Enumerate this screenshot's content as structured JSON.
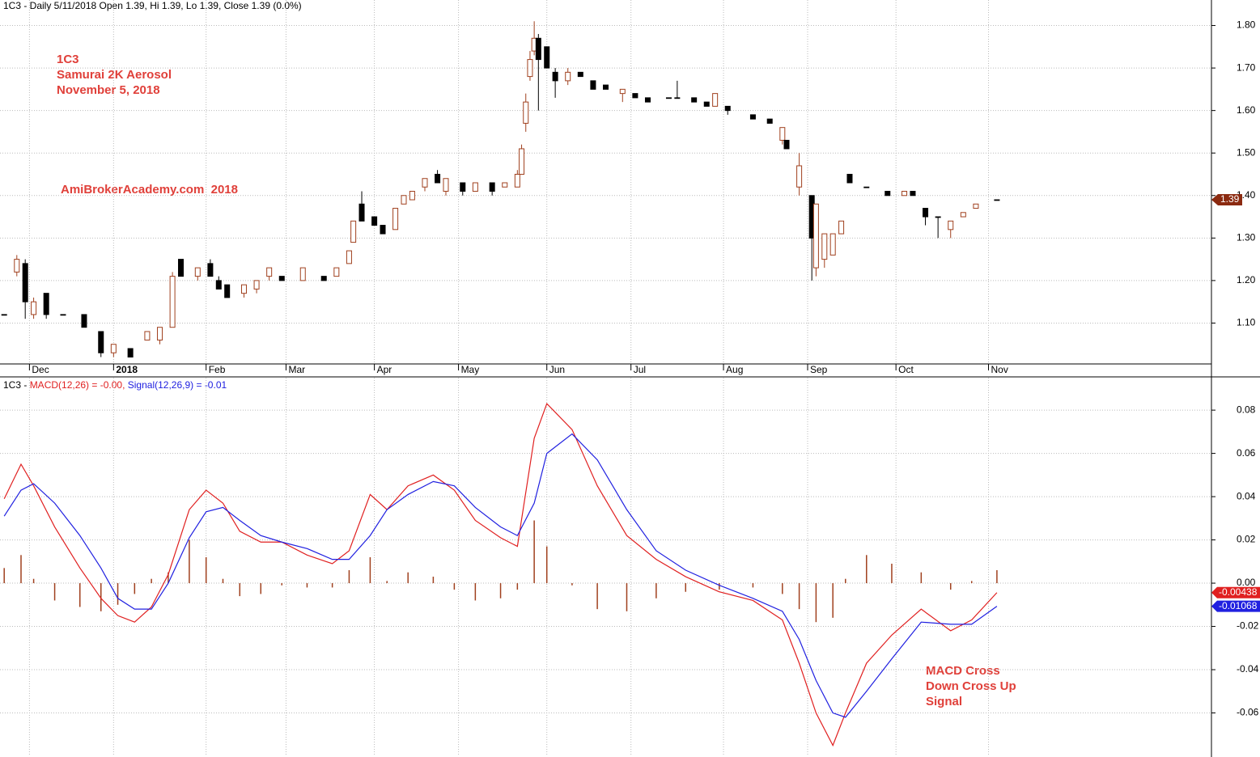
{
  "chart_data": [
    {
      "type": "candlestick",
      "title": "1C3 - Daily 5/11/2018 Open 1.39, Hi 1.39, Lo 1.39, Close 1.39 (0.0%)",
      "annotations": [
        "1C3",
        "Samurai 2K Aerosol",
        "November 5, 2018",
        "AmiBrokerAcademy.com  2018"
      ],
      "x": [
        0,
        3,
        5,
        7,
        10,
        14,
        19,
        23,
        26,
        30,
        34,
        37,
        40,
        42,
        46,
        49,
        51,
        53,
        57,
        60,
        63,
        66,
        71,
        76,
        79,
        82,
        83,
        85,
        88,
        90,
        93,
        95,
        97,
        100,
        103,
        105,
        109,
        112,
        116,
        119,
        122,
        123,
        124,
        125,
        126,
        127,
        129,
        131,
        134,
        137,
        140,
        143,
        147,
        150,
        153,
        158,
        160,
        164,
        167,
        169,
        172,
        178,
        182,
        185,
        186,
        189,
        192,
        193,
        195,
        197,
        199,
        201,
        205,
        210,
        214,
        216,
        219,
        222,
        225,
        228,
        231,
        236
      ],
      "open": [
        1.12,
        1.22,
        1.24,
        1.12,
        1.17,
        1.12,
        1.12,
        1.08,
        1.03,
        1.04,
        1.06,
        1.06,
        1.09,
        1.25,
        1.21,
        1.24,
        1.2,
        1.19,
        1.17,
        1.18,
        1.21,
        1.21,
        1.2,
        1.21,
        1.21,
        1.24,
        1.29,
        1.38,
        1.35,
        1.33,
        1.32,
        1.38,
        1.39,
        1.42,
        1.45,
        1.41,
        1.43,
        1.41,
        1.43,
        1.42,
        1.42,
        1.45,
        1.57,
        1.68,
        1.74,
        1.77,
        1.75,
        1.69,
        1.67,
        1.69,
        1.67,
        1.66,
        1.64,
        1.64,
        1.63,
        1.63,
        1.63,
        1.63,
        1.62,
        1.61,
        1.61,
        1.59,
        1.58,
        1.53,
        1.53,
        1.42,
        1.4,
        1.23,
        1.25,
        1.26,
        1.31,
        1.45,
        1.42,
        1.41,
        1.4,
        1.41,
        1.37,
        1.35,
        1.32,
        1.35,
        1.37,
        1.39
      ],
      "high": [
        1.12,
        1.26,
        1.25,
        1.16,
        1.17,
        1.12,
        1.12,
        1.08,
        1.05,
        1.04,
        1.08,
        1.09,
        1.22,
        1.25,
        1.23,
        1.25,
        1.21,
        1.19,
        1.19,
        1.2,
        1.23,
        1.21,
        1.23,
        1.21,
        1.23,
        1.27,
        1.34,
        1.41,
        1.35,
        1.33,
        1.37,
        1.4,
        1.41,
        1.44,
        1.46,
        1.44,
        1.43,
        1.43,
        1.43,
        1.43,
        1.46,
        1.52,
        1.64,
        1.74,
        1.81,
        1.78,
        1.75,
        1.7,
        1.7,
        1.69,
        1.67,
        1.66,
        1.65,
        1.64,
        1.63,
        1.63,
        1.67,
        1.63,
        1.62,
        1.64,
        1.61,
        1.59,
        1.58,
        1.56,
        1.53,
        1.5,
        1.4,
        1.38,
        1.31,
        1.31,
        1.34,
        1.45,
        1.42,
        1.41,
        1.41,
        1.41,
        1.37,
        1.35,
        1.34,
        1.36,
        1.38,
        1.39
      ],
      "low": [
        1.12,
        1.21,
        1.11,
        1.11,
        1.11,
        1.12,
        1.09,
        1.02,
        1.02,
        1.02,
        1.06,
        1.05,
        1.09,
        1.21,
        1.2,
        1.21,
        1.18,
        1.16,
        1.16,
        1.17,
        1.2,
        1.2,
        1.2,
        1.2,
        1.21,
        1.24,
        1.29,
        1.34,
        1.33,
        1.31,
        1.32,
        1.38,
        1.39,
        1.41,
        1.43,
        1.4,
        1.4,
        1.41,
        1.4,
        1.42,
        1.42,
        1.45,
        1.55,
        1.67,
        1.73,
        1.6,
        1.7,
        1.63,
        1.66,
        1.68,
        1.65,
        1.65,
        1.62,
        1.63,
        1.62,
        1.63,
        1.63,
        1.62,
        1.61,
        1.61,
        1.59,
        1.58,
        1.57,
        1.52,
        1.51,
        1.4,
        1.2,
        1.21,
        1.23,
        1.26,
        1.31,
        1.43,
        1.42,
        1.4,
        1.4,
        1.4,
        1.33,
        1.3,
        1.3,
        1.35,
        1.37,
        1.39
      ],
      "close": [
        1.12,
        1.25,
        1.15,
        1.15,
        1.12,
        1.12,
        1.09,
        1.03,
        1.05,
        1.02,
        1.08,
        1.09,
        1.21,
        1.21,
        1.23,
        1.21,
        1.18,
        1.16,
        1.19,
        1.2,
        1.23,
        1.2,
        1.23,
        1.2,
        1.23,
        1.27,
        1.34,
        1.34,
        1.33,
        1.31,
        1.37,
        1.4,
        1.41,
        1.44,
        1.43,
        1.44,
        1.41,
        1.43,
        1.41,
        1.43,
        1.45,
        1.51,
        1.62,
        1.72,
        1.77,
        1.72,
        1.7,
        1.67,
        1.69,
        1.68,
        1.65,
        1.65,
        1.65,
        1.63,
        1.62,
        1.63,
        1.63,
        1.62,
        1.61,
        1.64,
        1.6,
        1.58,
        1.57,
        1.56,
        1.51,
        1.47,
        1.3,
        1.38,
        1.31,
        1.31,
        1.34,
        1.43,
        1.42,
        1.4,
        1.41,
        1.4,
        1.35,
        1.35,
        1.34,
        1.36,
        1.38,
        1.39
      ],
      "up_color": "#a0401e",
      "down_color": "#000000",
      "xlim": [
        -1,
        287
      ],
      "ylim": [
        1.0,
        1.86
      ],
      "xticks": [
        {
          "value": 6,
          "label": "Dec"
        },
        {
          "value": 26,
          "label": "2018"
        },
        {
          "value": 48,
          "label": "Feb"
        },
        {
          "value": 67,
          "label": "Mar"
        },
        {
          "value": 88,
          "label": "Apr"
        },
        {
          "value": 108,
          "label": "May"
        },
        {
          "value": 129,
          "label": "Jun"
        },
        {
          "value": 149,
          "label": "Jul"
        },
        {
          "value": 171,
          "label": "Aug"
        },
        {
          "value": 191,
          "label": "Sep"
        },
        {
          "value": 212,
          "label": "Oct"
        },
        {
          "value": 234,
          "label": "Nov"
        }
      ],
      "yticks": [
        {
          "value": 1.1,
          "label": "1.10"
        },
        {
          "value": 1.2,
          "label": "1.20"
        },
        {
          "value": 1.3,
          "label": "1.30"
        },
        {
          "value": 1.4,
          "label": "1.40"
        },
        {
          "value": 1.5,
          "label": "1.50"
        },
        {
          "value": 1.6,
          "label": "1.60"
        },
        {
          "value": 1.7,
          "label": "1.70"
        },
        {
          "value": 1.8,
          "label": "1.80"
        }
      ],
      "grid": true
    },
    {
      "type": "macd",
      "title": [
        "1C3 - ",
        "MACD(12,26) = -0.00, ",
        "Signal(12,26,9) = -0.01"
      ],
      "annotations": [
        "MACD Cross",
        "Down Cross Up",
        "Signal"
      ],
      "x": [
        0,
        4,
        7,
        12,
        18,
        23,
        27,
        31,
        35,
        39,
        44,
        48,
        52,
        56,
        61,
        66,
        72,
        78,
        82,
        87,
        91,
        96,
        102,
        107,
        112,
        118,
        122,
        126,
        129,
        135,
        141,
        148,
        155,
        162,
        170,
        178,
        185,
        189,
        193,
        197,
        200,
        205,
        211,
        218,
        225,
        230,
        236
      ],
      "series": [
        {
          "name": "MACD(12,26)",
          "color": "#e02020",
          "values": [
            0.039,
            0.055,
            0.045,
            0.026,
            0.007,
            -0.007,
            -0.015,
            -0.018,
            -0.011,
            0.004,
            0.034,
            0.043,
            0.037,
            0.024,
            0.019,
            0.019,
            0.013,
            0.009,
            0.015,
            0.041,
            0.034,
            0.045,
            0.05,
            0.043,
            0.029,
            0.021,
            0.017,
            0.067,
            0.083,
            0.071,
            0.045,
            0.022,
            0.011,
            0.003,
            -0.004,
            -0.008,
            -0.017,
            -0.037,
            -0.06,
            -0.075,
            -0.06,
            -0.037,
            -0.024,
            -0.012,
            -0.022,
            -0.017,
            -0.00438
          ]
        },
        {
          "name": "Signal(12,26,9)",
          "color": "#2020e0",
          "values": [
            0.031,
            0.043,
            0.046,
            0.037,
            0.022,
            0.007,
            -0.007,
            -0.012,
            -0.012,
            0,
            0.021,
            0.033,
            0.035,
            0.029,
            0.022,
            0.019,
            0.016,
            0.011,
            0.011,
            0.022,
            0.034,
            0.041,
            0.047,
            0.045,
            0.035,
            0.026,
            0.022,
            0.037,
            0.06,
            0.069,
            0.057,
            0.034,
            0.015,
            0.006,
            -0.001,
            -0.007,
            -0.013,
            -0.026,
            -0.045,
            -0.06,
            -0.062,
            -0.05,
            -0.035,
            -0.018,
            -0.019,
            -0.019,
            -0.01068
          ]
        }
      ],
      "histogram": {
        "color": "#a0401e",
        "values": [
          0.007,
          0.013,
          0.002,
          -0.008,
          -0.011,
          -0.013,
          -0.01,
          -0.005,
          0.002,
          0.005,
          0.02,
          0.012,
          0.002,
          -0.006,
          -0.005,
          -0.001,
          -0.002,
          -0.002,
          0.006,
          0.012,
          0.001,
          0.005,
          0.003,
          -0.003,
          -0.008,
          -0.007,
          -0.003,
          0.029,
          0.017,
          -0.001,
          -0.012,
          -0.013,
          -0.007,
          -0.004,
          -0.003,
          -0.002,
          -0.005,
          -0.012,
          -0.018,
          -0.016,
          0.002,
          0.013,
          0.009,
          0.005,
          -0.003,
          0.001,
          0.006
        ]
      },
      "xlim": [
        -1,
        287
      ],
      "ylim": [
        -0.08,
        0.095
      ],
      "yticks": [
        -0.06,
        -0.04,
        -0.02,
        {
          "value": 0,
          "label": "0.00"
        },
        0.02,
        0.04,
        0.06,
        0.08
      ],
      "grid": true
    }
  ]
}
